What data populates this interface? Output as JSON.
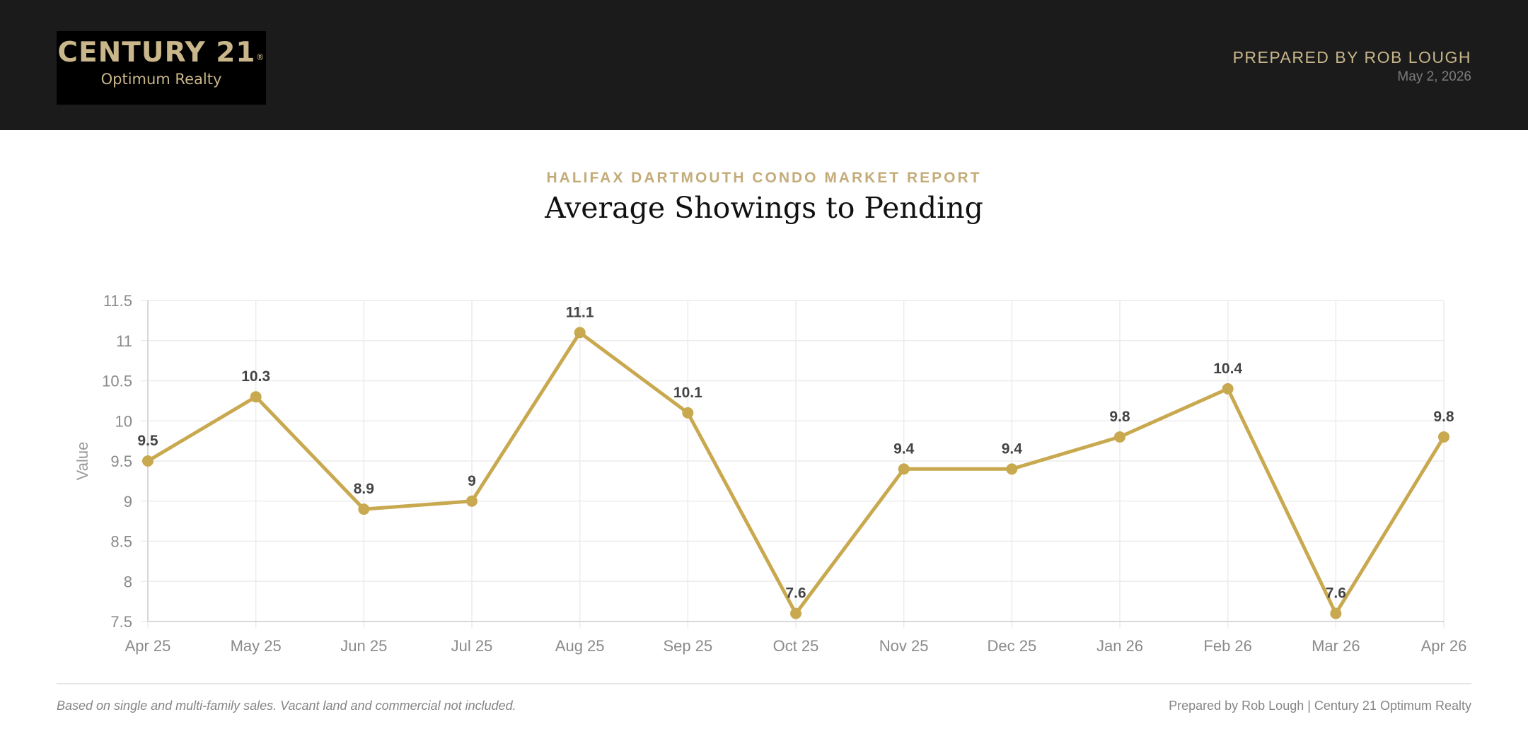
{
  "header": {
    "logo": {
      "main": "CENTURY 21",
      "registered": "®",
      "sub": "Optimum Realty"
    },
    "prepared_by": "PREPARED BY ROB LOUGH",
    "date": "May 2, 2026"
  },
  "report": {
    "label": "HALIFAX DARTMOUTH CONDO MARKET REPORT",
    "title": "Average Showings to Pending"
  },
  "chart_data": {
    "type": "line",
    "title": "Average Showings to Pending",
    "xlabel": "",
    "ylabel": "Value",
    "categories": [
      "Apr 25",
      "May 25",
      "Jun 25",
      "Jul 25",
      "Aug 25",
      "Sep 25",
      "Oct 25",
      "Nov 25",
      "Dec 25",
      "Jan 26",
      "Feb 26",
      "Mar 26",
      "Apr 26"
    ],
    "series": [
      {
        "values": [
          9.5,
          10.3,
          8.9,
          9,
          11.1,
          10.1,
          7.6,
          9.4,
          9.4,
          9.8,
          10.4,
          7.6,
          9.8
        ]
      }
    ],
    "data_labels": [
      "9.5",
      "10.3",
      "8.9",
      "9",
      "11.1",
      "10.1",
      "7.6",
      "9.4",
      "9.4",
      "9.8",
      "10.4",
      "7.6",
      "9.8"
    ],
    "ylim": [
      7.5,
      11.5
    ],
    "yticks": [
      7.5,
      8,
      8.5,
      9,
      9.5,
      10,
      10.5,
      11,
      11.5
    ],
    "ytick_labels": [
      "7.5",
      "8",
      "8.5",
      "9",
      "9.5",
      "10",
      "10.5",
      "11",
      "11.5"
    ],
    "grid": true,
    "legend": "none",
    "colors": {
      "line": "#c9a94f",
      "grid": "#ececec",
      "tick_text": "#8a8a8a",
      "data_label": "#444444"
    }
  },
  "footer": {
    "note": "Based on single and multi-family sales. Vacant land and commercial not included.",
    "credit": "Prepared by Rob Lough | Century 21 Optimum Realty"
  }
}
